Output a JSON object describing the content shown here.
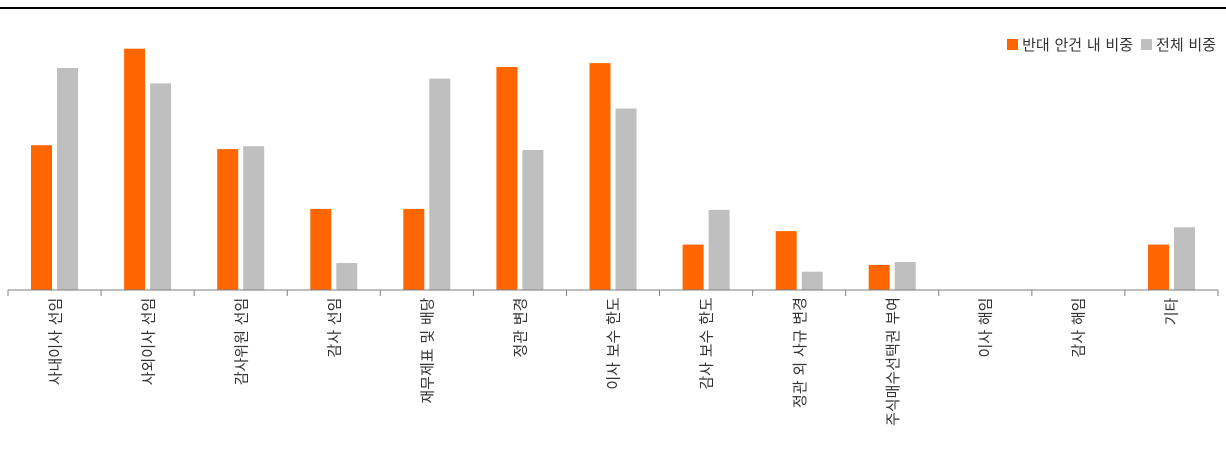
{
  "chart_data": {
    "type": "bar",
    "categories": [
      "사내이사 선임",
      "사외이사 선임",
      "감사위원 선임",
      "감사 선임",
      "재무제표 및 배당",
      "정관 변경",
      "이사 보수 한도",
      "감사 보수 한도",
      "정관 외 사규 변경",
      "주식매수선택권 부여",
      "이사 해임",
      "감사 해임",
      "기타"
    ],
    "series": [
      {
        "name": "반대 안건 내 비중",
        "color": "#FF6600",
        "values": [
          150,
          250,
          146,
          84,
          84,
          231,
          235,
          47,
          61,
          26,
          0,
          0,
          47
        ]
      },
      {
        "name": "전체 비중",
        "color": "#BFBFBF",
        "values": [
          230,
          214,
          149,
          28,
          219,
          145,
          188,
          83,
          19,
          29,
          0,
          0,
          65
        ]
      }
    ],
    "ylim": [
      0,
      260
    ],
    "legend_position": "top-right",
    "grid": false
  }
}
